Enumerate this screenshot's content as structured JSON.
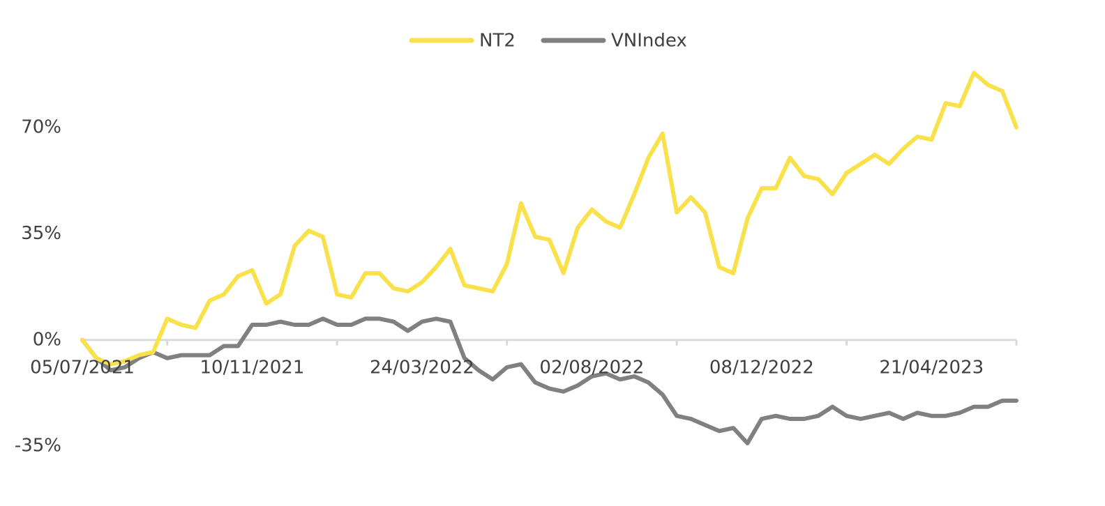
{
  "chart_data": {
    "type": "line",
    "categories": [
      "05/07/2021",
      null,
      null,
      null,
      null,
      null,
      null,
      null,
      null,
      null,
      null,
      null,
      "10/11/2021",
      null,
      null,
      null,
      null,
      null,
      null,
      null,
      null,
      null,
      null,
      null,
      "24/03/2022",
      null,
      null,
      null,
      null,
      null,
      null,
      null,
      null,
      null,
      null,
      null,
      "02/08/2022",
      null,
      null,
      null,
      null,
      null,
      null,
      null,
      null,
      null,
      null,
      null,
      "08/12/2022",
      null,
      null,
      null,
      null,
      null,
      null,
      null,
      null,
      null,
      null,
      null,
      "21/04/2023",
      null,
      null,
      null,
      null,
      null,
      null
    ],
    "series": [
      {
        "name": "NT2",
        "color": "#f9e14b",
        "values": [
          0,
          -6,
          -8,
          -7,
          -5,
          -4,
          7,
          5,
          4,
          13,
          15,
          21,
          23,
          12,
          15,
          31,
          36,
          34,
          15,
          14,
          22,
          22,
          17,
          16,
          19,
          24,
          30,
          18,
          17,
          16,
          25,
          45,
          34,
          33,
          22,
          37,
          43,
          39,
          37,
          48,
          60,
          68,
          42,
          47,
          42,
          24,
          22,
          40,
          50,
          50,
          60,
          54,
          53,
          48,
          55,
          58,
          61,
          58,
          63,
          67,
          66,
          78,
          77,
          88,
          84,
          82,
          70
        ]
      },
      {
        "name": "VNIndex",
        "color": "#808080",
        "values": [
          0,
          -6,
          -10,
          -9,
          -6,
          -4,
          -6,
          -5,
          -5,
          -5,
          -2,
          -2,
          5,
          5,
          6,
          5,
          5,
          7,
          5,
          5,
          7,
          7,
          6,
          3,
          6,
          7,
          6,
          -6,
          -10,
          -13,
          -9,
          -8,
          -14,
          -16,
          -17,
          -15,
          -12,
          -11,
          -13,
          -12,
          -14,
          -18,
          -25,
          -26,
          -28,
          -30,
          -29,
          -34,
          -26,
          -25,
          -26,
          -26,
          -25,
          -22,
          -25,
          -26,
          -25,
          -24,
          -26,
          -24,
          -25,
          -25,
          -24,
          -22,
          -22,
          -20,
          -20
        ]
      }
    ],
    "ylim": [
      -40,
      95
    ],
    "yticks": [
      {
        "value": -35,
        "label": "-35%"
      },
      {
        "value": 0,
        "label": "0%"
      },
      {
        "value": 35,
        "label": "35%"
      },
      {
        "value": 70,
        "label": "70%"
      }
    ],
    "legend": "top"
  }
}
